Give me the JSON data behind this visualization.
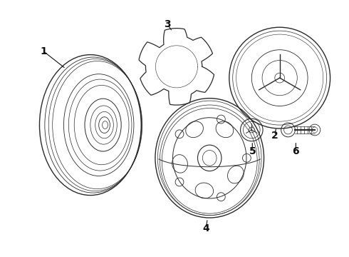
{
  "bg_color": "#ffffff",
  "line_color": "#2a2a2a",
  "label_color": "#111111",
  "fig_width": 4.9,
  "fig_height": 3.6,
  "dpi": 100,
  "label_fontsize": 10
}
